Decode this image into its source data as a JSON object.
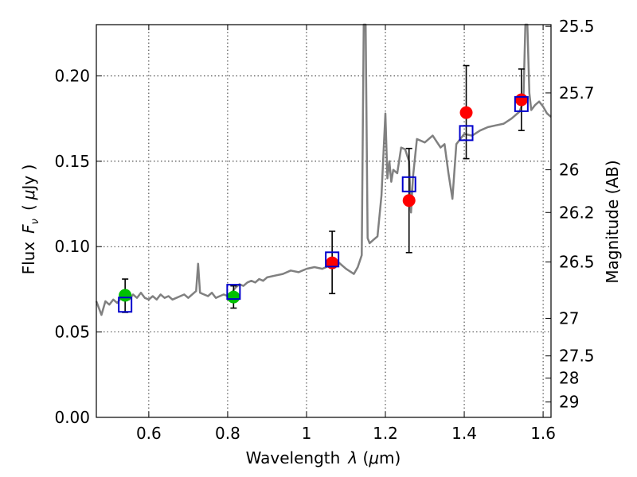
{
  "chart_data": {
    "type": "scatter",
    "xlabel_prefix": "Wavelength",
    "xlabel_var": "λ",
    "xlabel_unit_open": " (",
    "xlabel_unit_mu": "μ",
    "xlabel_unit_rest": "m)",
    "ylabel_prefix": "Flux",
    "ylabel_var": "F",
    "ylabel_var_sub": "ν",
    "ylabel_unit": "(",
    "ylabel_unit_mu": "μ",
    "ylabel_unit_rest": "Jy )",
    "y2label": "Magnitude (AB)",
    "xlim": [
      0.467,
      1.62
    ],
    "ylim": [
      0.0,
      0.23
    ],
    "grid": true,
    "x_ticks": [
      {
        "value": 0.6,
        "label": "0.6"
      },
      {
        "value": 0.8,
        "label": "0.8"
      },
      {
        "value": 1.0,
        "label": "1"
      },
      {
        "value": 1.2,
        "label": "1.2"
      },
      {
        "value": 1.4,
        "label": "1.4"
      },
      {
        "value": 1.6,
        "label": "1.6"
      }
    ],
    "y_ticks": [
      {
        "value": 0.0,
        "label": "0.00"
      },
      {
        "value": 0.05,
        "label": "0.05"
      },
      {
        "value": 0.1,
        "label": "0.10"
      },
      {
        "value": 0.15,
        "label": "0.15"
      },
      {
        "value": 0.2,
        "label": "0.20"
      }
    ],
    "y2_ticks": [
      {
        "flux": 0.229,
        "label": "25.5"
      },
      {
        "flux": 0.19,
        "label": "25.7"
      },
      {
        "flux": 0.145,
        "label": "26"
      },
      {
        "flux": 0.12,
        "label": "26.2"
      },
      {
        "flux": 0.091,
        "label": "26.5"
      },
      {
        "flux": 0.058,
        "label": "27"
      },
      {
        "flux": 0.036,
        "label": "27.5"
      },
      {
        "flux": 0.023,
        "label": "28"
      },
      {
        "flux": 0.009,
        "label": "29"
      }
    ],
    "colors": {
      "model_line": "#808080",
      "optical_points": "#00c000",
      "nir_points": "#ff0000",
      "model_boxes": "#0000cc",
      "error_bars": "#000000"
    },
    "series": [
      {
        "name": "model spectrum",
        "kind": "line",
        "x": [
          0.467,
          0.48,
          0.49,
          0.5,
          0.51,
          0.52,
          0.53,
          0.54,
          0.55,
          0.56,
          0.57,
          0.58,
          0.59,
          0.6,
          0.61,
          0.62,
          0.63,
          0.64,
          0.65,
          0.66,
          0.67,
          0.68,
          0.69,
          0.7,
          0.71,
          0.72,
          0.725,
          0.73,
          0.74,
          0.75,
          0.76,
          0.77,
          0.78,
          0.79,
          0.8,
          0.81,
          0.82,
          0.83,
          0.84,
          0.85,
          0.86,
          0.87,
          0.88,
          0.89,
          0.9,
          0.92,
          0.94,
          0.96,
          0.98,
          1.0,
          1.02,
          1.04,
          1.06,
          1.08,
          1.1,
          1.12,
          1.13,
          1.14,
          1.145,
          1.15,
          1.155,
          1.16,
          1.17,
          1.18,
          1.19,
          1.2,
          1.205,
          1.21,
          1.215,
          1.22,
          1.23,
          1.24,
          1.25,
          1.26,
          1.265,
          1.27,
          1.28,
          1.3,
          1.32,
          1.34,
          1.35,
          1.36,
          1.37,
          1.38,
          1.4,
          1.42,
          1.44,
          1.46,
          1.48,
          1.5,
          1.52,
          1.54,
          1.55,
          1.555,
          1.56,
          1.565,
          1.57,
          1.58,
          1.59,
          1.6,
          1.61,
          1.62
        ],
        "y": [
          0.068,
          0.06,
          0.068,
          0.066,
          0.069,
          0.067,
          0.07,
          0.071,
          0.069,
          0.072,
          0.07,
          0.073,
          0.07,
          0.069,
          0.071,
          0.069,
          0.072,
          0.07,
          0.071,
          0.069,
          0.07,
          0.071,
          0.072,
          0.07,
          0.072,
          0.074,
          0.09,
          0.073,
          0.072,
          0.071,
          0.073,
          0.07,
          0.071,
          0.072,
          0.071,
          0.073,
          0.076,
          0.078,
          0.077,
          0.079,
          0.08,
          0.079,
          0.081,
          0.08,
          0.082,
          0.083,
          0.084,
          0.086,
          0.085,
          0.087,
          0.088,
          0.087,
          0.089,
          0.091,
          0.087,
          0.084,
          0.088,
          0.095,
          0.23,
          0.23,
          0.105,
          0.102,
          0.104,
          0.106,
          0.13,
          0.178,
          0.14,
          0.15,
          0.138,
          0.145,
          0.143,
          0.158,
          0.157,
          0.15,
          0.12,
          0.141,
          0.163,
          0.161,
          0.165,
          0.158,
          0.16,
          0.143,
          0.128,
          0.16,
          0.166,
          0.165,
          0.168,
          0.17,
          0.171,
          0.172,
          0.175,
          0.179,
          0.185,
          0.23,
          0.23,
          0.19,
          0.18,
          0.183,
          0.185,
          0.182,
          0.178,
          0.176
        ]
      },
      {
        "name": "optical photometry",
        "kind": "points",
        "color_key": "optical_points",
        "points": [
          {
            "x": 0.54,
            "y": 0.0715,
            "err_low": 0.0615,
            "err_high": 0.081
          },
          {
            "x": 0.815,
            "y": 0.0705,
            "err_low": 0.064,
            "err_high": 0.077
          }
        ]
      },
      {
        "name": "near-IR photometry",
        "kind": "points",
        "color_key": "nir_points",
        "points": [
          {
            "x": 1.065,
            "y": 0.0905,
            "err_low": 0.0725,
            "err_high": 0.109
          },
          {
            "x": 1.26,
            "y": 0.127,
            "err_low": 0.0965,
            "err_high": 0.1575
          },
          {
            "x": 1.405,
            "y": 0.1785,
            "err_low": 0.1515,
            "err_high": 0.206
          },
          {
            "x": 1.545,
            "y": 0.186,
            "err_low": 0.168,
            "err_high": 0.204
          }
        ]
      },
      {
        "name": "model band fluxes",
        "kind": "boxes",
        "color_key": "model_boxes",
        "points": [
          {
            "x": 0.54,
            "y": 0.066
          },
          {
            "x": 0.815,
            "y": 0.0735
          },
          {
            "x": 1.065,
            "y": 0.0925
          },
          {
            "x": 1.26,
            "y": 0.1365
          },
          {
            "x": 1.405,
            "y": 0.1665
          },
          {
            "x": 1.545,
            "y": 0.1835
          }
        ]
      }
    ]
  }
}
